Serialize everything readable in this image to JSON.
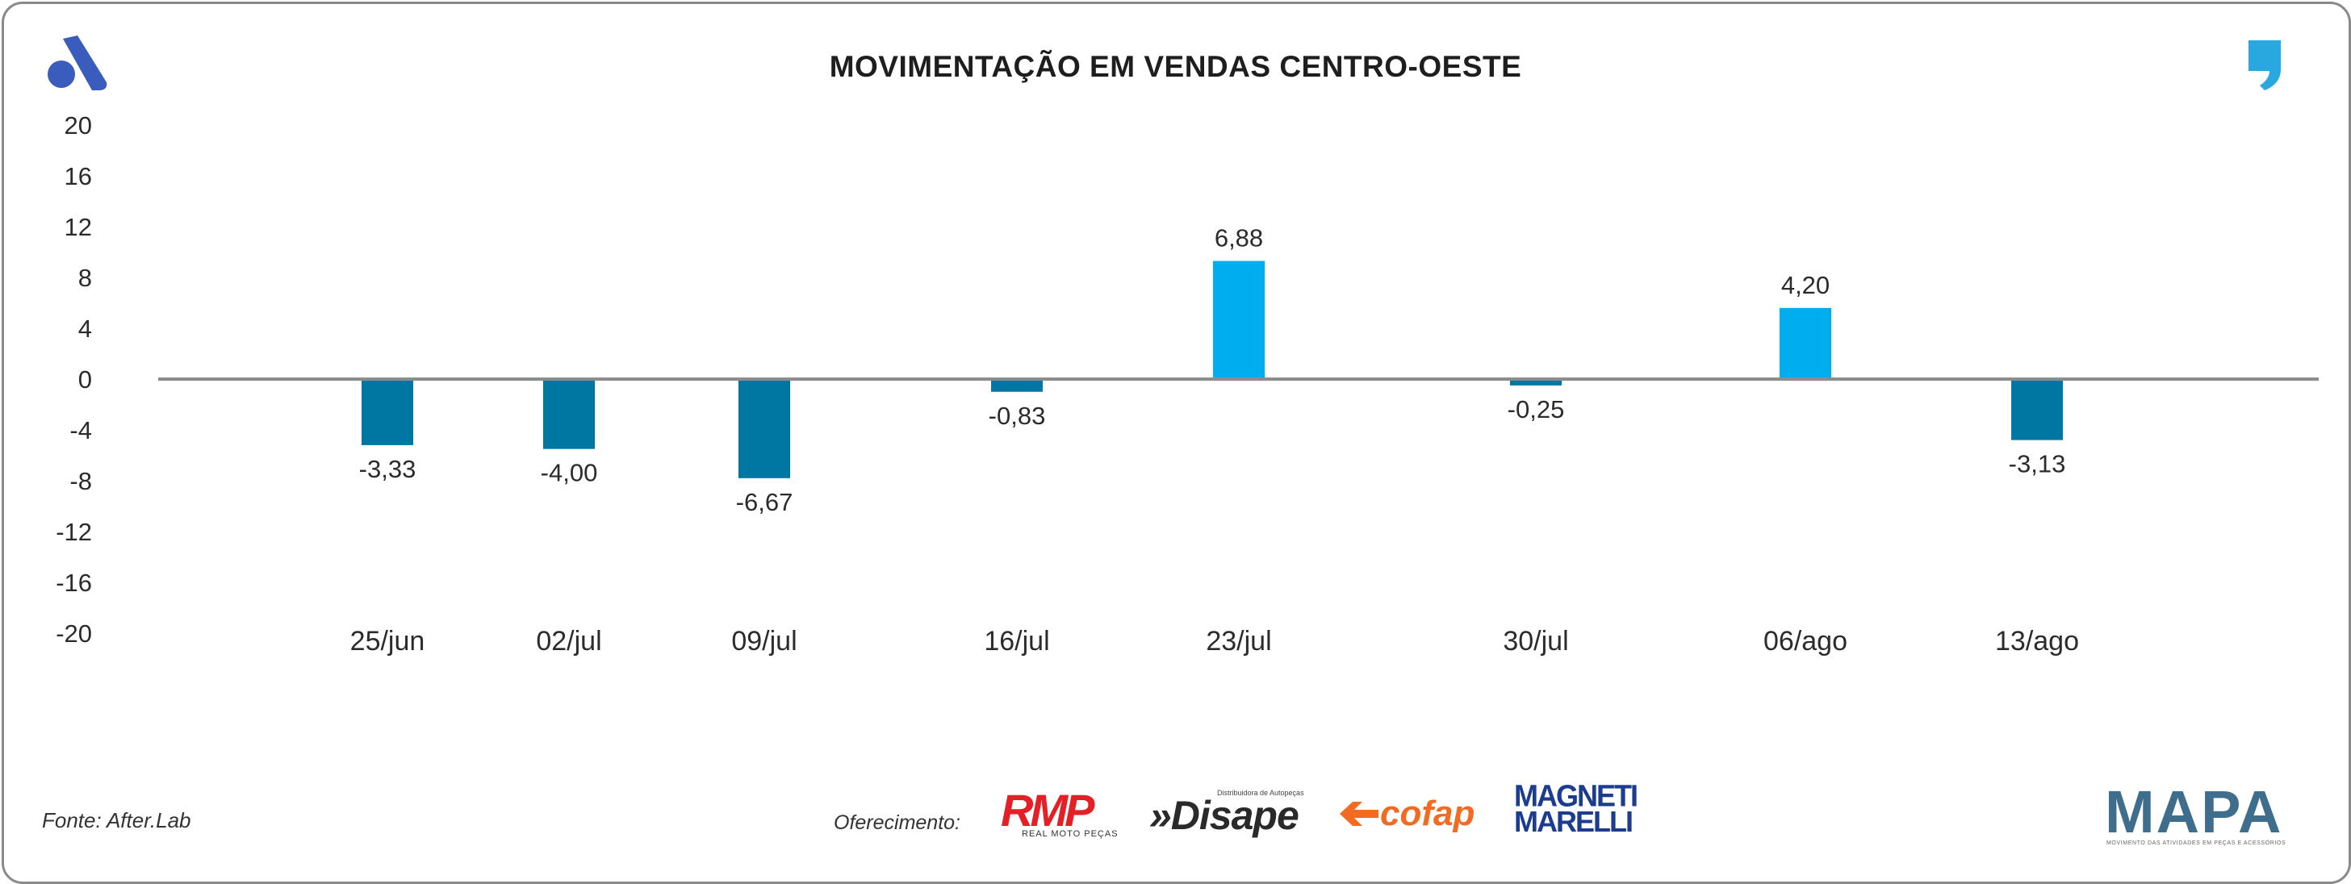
{
  "header": {
    "title": "MOVIMENTAÇÃO EM VENDAS CENTRO-OESTE"
  },
  "chart_data": {
    "type": "bar",
    "title": "MOVIMENTAÇÃO EM VENDAS CENTRO-OESTE",
    "xlabel": "",
    "ylabel": "",
    "ylim": [
      -20,
      20
    ],
    "yticks": [
      20,
      16,
      12,
      8,
      4,
      0,
      -4,
      -8,
      -12,
      -16,
      -20
    ],
    "grid": false,
    "categories": [
      "25/jun",
      "02/jul",
      "09/jul",
      "16/jul",
      "23/jul",
      "30/jul",
      "06/ago",
      "13/ago"
    ],
    "values": [
      -3.33,
      -4.0,
      -6.67,
      -0.83,
      6.88,
      -0.25,
      4.2,
      -3.13
    ],
    "data_labels": [
      "-3,33",
      "-4,00",
      "-6,67",
      "-0,83",
      "6,88",
      "-0,25",
      "4,20",
      "-3,13"
    ],
    "bar_heights": [
      -5.2,
      -5.5,
      -7.8,
      -1.0,
      9.3,
      -0.5,
      5.6,
      -4.8
    ],
    "colors": {
      "positive": "#00adef",
      "negative": "#0076a3",
      "axis": "#8c8c8c"
    }
  },
  "footer": {
    "source": "Fonte: After.Lab",
    "offered_by": "Oferecimento:"
  },
  "sponsors": {
    "rmp": "RMP",
    "rmp_sub": "REAL MOTO PEÇAS",
    "disape": "»Disape",
    "disape_sub": "Distribuidora de Autopeças",
    "cofap": "cofap",
    "magneti_line1": "MAGNETI",
    "magneti_line2": "MARELLI"
  },
  "branding": {
    "mapa": "MAPA",
    "mapa_sub": "MOVIMENTO DAS ATIVIDADES EM PEÇAS E ACESSÓRIOS",
    "brand_blue": "#3a5dbd",
    "accent_cyan": "#29a8e0"
  }
}
